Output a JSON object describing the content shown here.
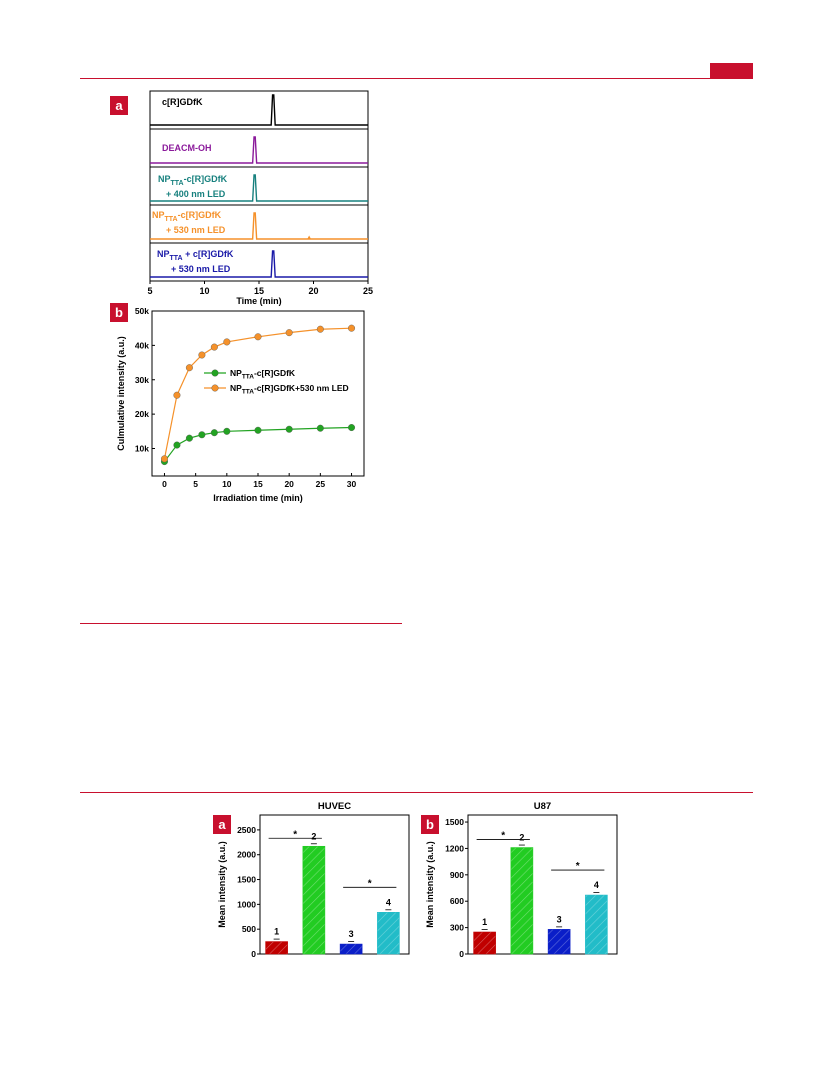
{
  "colors": {
    "accent": "#c8102e",
    "black": "#000000",
    "purple": "#8b1a9b",
    "teal": "#17807e",
    "orange": "#f5912a",
    "blue": "#1a1aa8",
    "green": "#22a322",
    "bar1": "#c00000",
    "bar2": "#22cc22",
    "bar3": "#0a1ec8",
    "bar4": "#22bcc8"
  },
  "figure_top": {
    "panel_a": {
      "tag": "a",
      "traces": [
        {
          "label": "c[R]GDfK",
          "color": "#000000",
          "peak_time": 16.3
        },
        {
          "label": "DEACM-OH",
          "color": "#8b1a9b",
          "peak_time": 14.6
        },
        {
          "label_main": "NP",
          "label_sub": "TTA",
          "label_rest": "-c[R]GDfK",
          "label_line2": "+ 400 nm LED",
          "color": "#17807e",
          "peak_time": 14.6
        },
        {
          "label_main": "NP",
          "label_sub": "TTA",
          "label_rest": "-c[R]GDfK",
          "label_line2": "+ 530 nm LED",
          "color": "#f5912a",
          "peak_time": 14.6
        },
        {
          "label_main": "NP",
          "label_sub": "TTA",
          "label_rest": " + c[R]GDfK",
          "label_line2": "+ 530 nm LED",
          "color": "#1a1aa8",
          "peak_time": 16.3
        }
      ],
      "x_ticks": [
        "5",
        "10",
        "15",
        "20",
        "25"
      ],
      "x_label": "Time (min)"
    },
    "panel_b": {
      "tag": "b",
      "chart_data": {
        "type": "line",
        "x": [
          0,
          2,
          4,
          6,
          8,
          10,
          15,
          20,
          25,
          30
        ],
        "series": [
          {
            "name": "NPTTA-c[R]GDfK",
            "legend_main": "NP",
            "legend_sub": "TTA",
            "legend_rest": "-c[R]GDfK",
            "values": [
              6200,
              11000,
              13000,
              14000,
              14600,
              15000,
              15300,
              15600,
              15900,
              16100
            ],
            "color": "#22a322"
          },
          {
            "name": "NPTTA-c[R]GDfK+530 nm LED",
            "legend_main": "NP",
            "legend_sub": "TTA",
            "legend_rest": "-c[R]GDfK+530 nm LED",
            "values": [
              7000,
              25500,
              33500,
              37200,
              39500,
              41000,
              42500,
              43700,
              44700,
              45000
            ],
            "color": "#f5912a"
          }
        ],
        "x_ticks": [
          "0",
          "5",
          "10",
          "15",
          "20",
          "25",
          "30"
        ],
        "y_ticks": [
          "10k",
          "20k",
          "30k",
          "40k",
          "50k"
        ],
        "xlabel": "Irradiation time (min)",
        "ylabel": "Culmulative intensity (a.u.)",
        "xlim": [
          -2,
          32
        ],
        "ylim": [
          2000,
          50000
        ]
      }
    }
  },
  "figure_bottom": {
    "panel_a": {
      "tag": "a",
      "chart_data": {
        "type": "bar",
        "title": "HUVEC",
        "categories": [
          "1",
          "2",
          "3",
          "4"
        ],
        "values": [
          250,
          2170,
          200,
          840
        ],
        "ylabel": "Mean intensity (a.u.)",
        "y_ticks": [
          "0",
          "500",
          "1000",
          "1500",
          "2000",
          "2500"
        ],
        "ylim": [
          0,
          2800
        ],
        "significance": [
          "*",
          "*"
        ]
      }
    },
    "panel_b": {
      "tag": "b",
      "chart_data": {
        "type": "bar",
        "title": "U87",
        "categories": [
          "1",
          "2",
          "3",
          "4"
        ],
        "values": [
          250,
          1210,
          280,
          670
        ],
        "ylabel": "Mean intensity (a.u.)",
        "y_ticks": [
          "0",
          "300",
          "600",
          "900",
          "1200",
          "1500"
        ],
        "ylim": [
          0,
          1580
        ],
        "significance": [
          "*",
          "*"
        ]
      }
    }
  }
}
